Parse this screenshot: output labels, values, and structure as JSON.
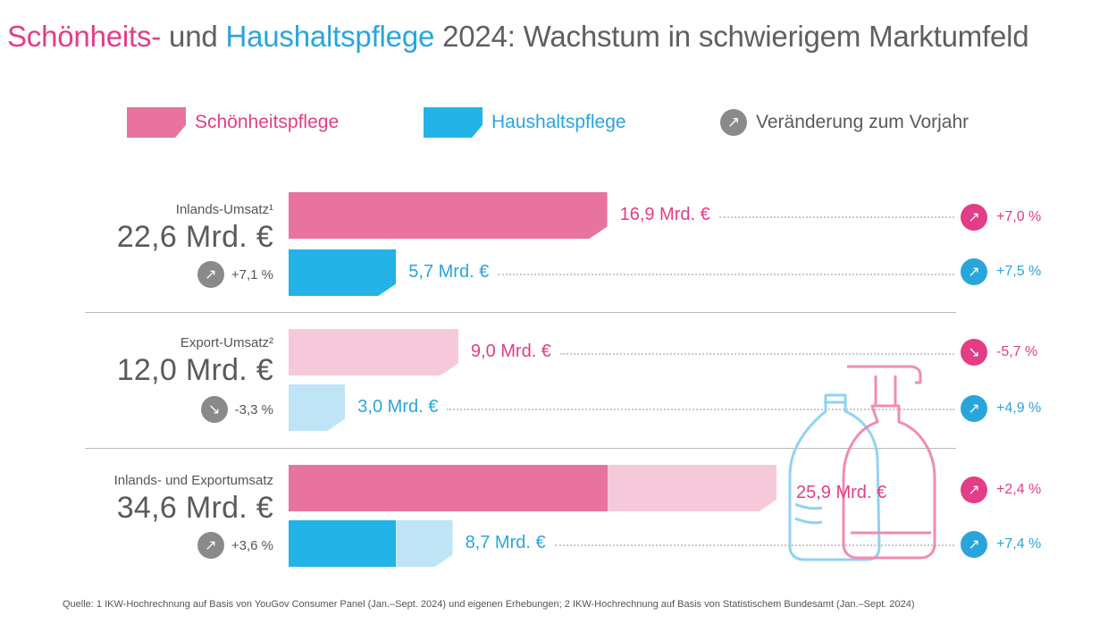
{
  "title": {
    "part1": "Schönheits-",
    "part2": "und",
    "part3": "Haushaltspflege",
    "part4": "2024: Wachstum in schwierigem Marktumfeld"
  },
  "legend": {
    "beauty": "Schönheitspflege",
    "household": "Haushaltspflege",
    "change": "Veränderung zum Vorjahr"
  },
  "colors": {
    "beauty": "#e8739f",
    "beauty_light": "#f6c9da",
    "household": "#23b3e6",
    "household_light": "#bfe4f5",
    "change_grey": "#8a8a8a"
  },
  "chart_data": {
    "type": "bar",
    "unit": "Mrd. €",
    "groups": [
      {
        "label": "Inlands-Umsatz¹",
        "total": "22,6 Mrd. €",
        "total_change": "+7,1 %",
        "total_direction": "up",
        "bars": [
          {
            "series": "Schönheitspflege",
            "value": 16.9,
            "label": "16,9 Mrd. €",
            "change": "+7,0 %",
            "direction": "up"
          },
          {
            "series": "Haushaltspflege",
            "value": 5.7,
            "label": "5,7 Mrd. €",
            "change": "+7,5 %",
            "direction": "up"
          }
        ]
      },
      {
        "label": "Export-Umsatz²",
        "total": "12,0 Mrd. €",
        "total_change": "-3,3 %",
        "total_direction": "down",
        "bars": [
          {
            "series": "Schönheitspflege",
            "value": 9.0,
            "label": "9,0 Mrd. €",
            "change": "-5,7 %",
            "direction": "down"
          },
          {
            "series": "Haushaltspflege",
            "value": 3.0,
            "label": "3,0 Mrd. €",
            "change": "+4,9 %",
            "direction": "up"
          }
        ]
      },
      {
        "label": "Inlands- und Exportumsatz",
        "total": "34,6 Mrd. €",
        "total_change": "+3,6 %",
        "total_direction": "up",
        "bars": [
          {
            "series": "Schönheitspflege",
            "value": 25.9,
            "label": "25,9 Mrd. €",
            "change": "+2,4 %",
            "direction": "up",
            "parts": [
              16.9,
              9.0
            ]
          },
          {
            "series": "Haushaltspflege",
            "value": 8.7,
            "label": "8,7 Mrd. €",
            "change": "+7,4 %",
            "direction": "up",
            "parts": [
              5.7,
              3.0
            ]
          }
        ]
      }
    ]
  },
  "icons": {
    "up": "↗",
    "down": "↘"
  },
  "source": "Quelle: 1 IKW-Hochrechnung auf Basis von YouGov Consumer Panel (Jan.–Sept. 2024) und eigenen Erhebungen; 2 IKW-Hochrechnung auf Basis von Statistischem Bundesamt (Jan.–Sept. 2024)"
}
